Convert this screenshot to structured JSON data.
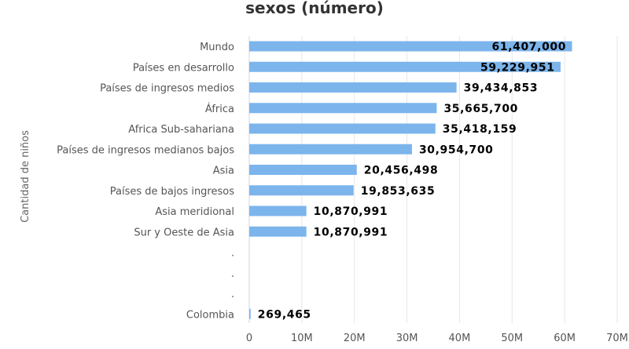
{
  "chart_data": {
    "type": "bar",
    "orientation": "horizontal",
    "title": "sexos (número)",
    "ylabel": "Cantidad de niños",
    "xlabel": "",
    "categories": [
      "Mundo",
      "Países en desarrollo",
      "Países de ingresos medios",
      "África",
      "Africa Sub-sahariana",
      "Países de ingresos medianos bajos",
      "Asia",
      "Países de bajos ingresos",
      "Asia meridional",
      "Sur y Oeste de Asia",
      ".",
      ".",
      ".",
      "Colombia"
    ],
    "values": [
      61407000,
      59229951,
      39434853,
      35665700,
      35418159,
      30954700,
      20456498,
      19853635,
      10870991,
      10870991,
      null,
      null,
      null,
      269465
    ],
    "data_labels": [
      "61,407,000",
      "59,229,951",
      "39,434,853",
      "35,665,700",
      "35,418,159",
      "30,954,700",
      "20,456,498",
      "19,853,635",
      "10,870,991",
      "10,870,991",
      "",
      "",
      "",
      "269,465"
    ],
    "x_ticks": [
      "0",
      "10M",
      "20M",
      "30M",
      "40M",
      "50M",
      "60M",
      "70M"
    ],
    "xlim": [
      0,
      70000000
    ],
    "grid": true,
    "bar_color": "#7cb5ec"
  }
}
